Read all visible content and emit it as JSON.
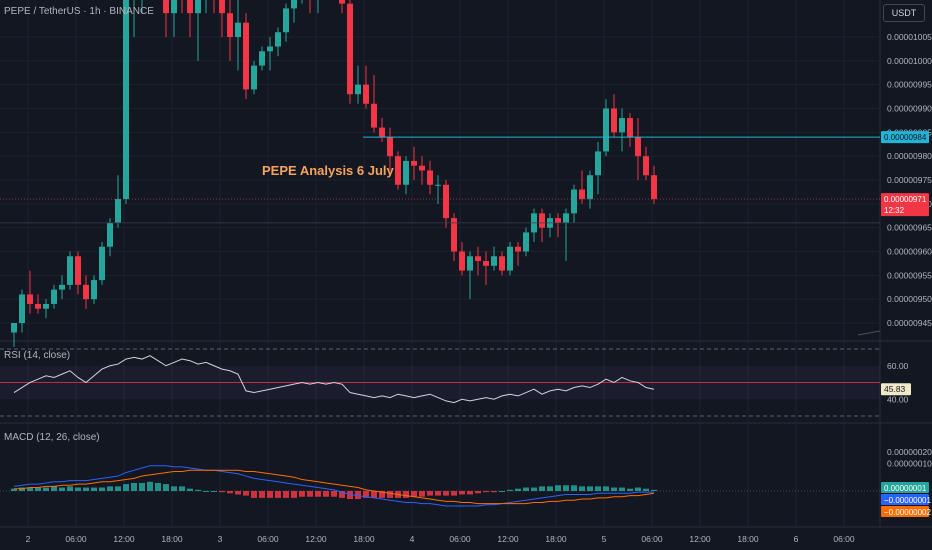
{
  "symbol_line": "PEPE / TetherUS · 1h · BINANCE",
  "annotation": "PEPE Analysis 6 July",
  "currency_button": "USDT",
  "colors": {
    "background": "#131722",
    "up": "#26a69a",
    "down": "#f23645",
    "rsi_line": "#d1d4dc",
    "rsi_mid": "#f23645",
    "macd_line": "#2962ff",
    "signal_line": "#ff6d00",
    "hline": "#22b4d6"
  },
  "price_panel": {
    "y_ticks": [
      "0.00000945",
      "0.00000950",
      "0.00000955",
      "0.00000960",
      "0.00000965",
      "0.00000970",
      "0.00000975",
      "0.00000980",
      "0.00000985",
      "0.00000990",
      "0.00000995",
      "0.00001000",
      "0.00001005"
    ],
    "horizontal_line_value": "0.00000984",
    "last_price": "0.00000971",
    "countdown": "12:32"
  },
  "rsi_panel": {
    "title": "RSI (14, close)",
    "levels": [
      "60.00",
      "40.00"
    ],
    "current": "45.83"
  },
  "macd_panel": {
    "title": "MACD (12, 26, close)",
    "y_ticks": [
      "0.00000020",
      "0.00000010"
    ],
    "histogram_value": "0.00000001",
    "macd_value": "−0.00000001",
    "signal_value": "−0.00000002"
  },
  "x_ticks": [
    "2",
    "06:00",
    "12:00",
    "18:00",
    "3",
    "06:00",
    "12:00",
    "18:00",
    "4",
    "06:00",
    "12:00",
    "18:00",
    "5",
    "06:00",
    "12:00",
    "18:00",
    "6",
    "06:00"
  ],
  "chart_data": {
    "type": "candlestick",
    "x_label_spacing": "6h",
    "ohlc": [
      [
        9.43,
        9.45,
        9.4,
        9.45
      ],
      [
        9.45,
        9.52,
        9.43,
        9.51
      ],
      [
        9.51,
        9.56,
        9.47,
        9.49
      ],
      [
        9.49,
        9.51,
        9.47,
        9.48
      ],
      [
        9.48,
        9.5,
        9.46,
        9.49
      ],
      [
        9.49,
        9.53,
        9.48,
        9.52
      ],
      [
        9.52,
        9.55,
        9.5,
        9.53
      ],
      [
        9.53,
        9.6,
        9.52,
        9.59
      ],
      [
        9.59,
        9.6,
        9.51,
        9.53
      ],
      [
        9.53,
        9.55,
        9.48,
        9.5
      ],
      [
        9.5,
        9.55,
        9.49,
        9.54
      ],
      [
        9.54,
        9.62,
        9.53,
        9.61
      ],
      [
        9.61,
        9.67,
        9.59,
        9.66
      ],
      [
        9.66,
        9.76,
        9.65,
        9.71
      ],
      [
        9.71,
        10.2,
        9.7,
        10.15
      ],
      [
        10.15,
        10.35,
        10.05,
        10.2
      ],
      [
        10.2,
        10.4,
        10.1,
        10.25
      ],
      [
        10.25,
        10.45,
        10.15,
        10.3
      ],
      [
        10.3,
        10.4,
        10.15,
        10.2
      ],
      [
        10.2,
        10.3,
        10.05,
        10.1
      ],
      [
        10.1,
        10.25,
        10.05,
        10.2
      ],
      [
        10.2,
        10.3,
        10.1,
        10.15
      ],
      [
        10.15,
        10.25,
        10.05,
        10.1
      ],
      [
        10.1,
        10.2,
        10.0,
        10.15
      ],
      [
        10.15,
        10.25,
        10.1,
        10.2
      ],
      [
        10.2,
        10.3,
        10.1,
        10.15
      ],
      [
        10.15,
        10.25,
        10.05,
        10.1
      ],
      [
        10.1,
        10.2,
        10.0,
        10.05
      ],
      [
        10.05,
        10.15,
        9.98,
        10.08
      ],
      [
        10.08,
        10.1,
        9.92,
        9.94
      ],
      [
        9.94,
        10.0,
        9.93,
        9.99
      ],
      [
        9.99,
        10.03,
        9.98,
        10.02
      ],
      [
        10.02,
        10.05,
        9.98,
        10.03
      ],
      [
        10.03,
        10.07,
        10.01,
        10.06
      ],
      [
        10.06,
        10.12,
        10.04,
        10.11
      ],
      [
        10.11,
        10.15,
        10.08,
        10.15
      ],
      [
        10.15,
        10.2,
        10.12,
        10.18
      ],
      [
        10.18,
        10.2,
        10.1,
        10.15
      ],
      [
        10.15,
        10.2,
        10.1,
        10.17
      ],
      [
        10.17,
        10.22,
        10.13,
        10.16
      ],
      [
        10.16,
        10.25,
        10.14,
        10.22
      ],
      [
        10.22,
        10.26,
        10.1,
        10.12
      ],
      [
        10.12,
        10.14,
        9.91,
        9.93
      ],
      [
        9.93,
        9.99,
        9.91,
        9.95
      ],
      [
        9.95,
        9.99,
        9.9,
        9.91
      ],
      [
        9.91,
        9.97,
        9.85,
        9.86
      ],
      [
        9.86,
        9.88,
        9.83,
        9.84
      ],
      [
        9.84,
        9.86,
        9.77,
        9.8
      ],
      [
        9.8,
        9.81,
        9.73,
        9.74
      ],
      [
        9.74,
        9.8,
        9.72,
        9.79
      ],
      [
        9.79,
        9.82,
        9.75,
        9.78
      ],
      [
        9.78,
        9.8,
        9.74,
        9.77
      ],
      [
        9.77,
        9.79,
        9.72,
        9.74
      ],
      [
        9.74,
        9.76,
        9.7,
        9.74
      ],
      [
        9.74,
        9.75,
        9.65,
        9.67
      ],
      [
        9.67,
        9.68,
        9.58,
        9.6
      ],
      [
        9.6,
        9.62,
        9.55,
        9.56
      ],
      [
        9.56,
        9.6,
        9.5,
        9.59
      ],
      [
        9.59,
        9.61,
        9.55,
        9.58
      ],
      [
        9.58,
        9.6,
        9.53,
        9.57
      ],
      [
        9.57,
        9.61,
        9.56,
        9.59
      ],
      [
        9.59,
        9.6,
        9.55,
        9.56
      ],
      [
        9.56,
        9.62,
        9.55,
        9.61
      ],
      [
        9.61,
        9.62,
        9.57,
        9.6
      ],
      [
        9.6,
        9.65,
        9.59,
        9.64
      ],
      [
        9.64,
        9.69,
        9.62,
        9.68
      ],
      [
        9.68,
        9.69,
        9.62,
        9.65
      ],
      [
        9.65,
        9.68,
        9.63,
        9.67
      ],
      [
        9.67,
        9.68,
        9.63,
        9.66
      ],
      [
        9.66,
        9.69,
        9.58,
        9.68
      ],
      [
        9.68,
        9.74,
        9.66,
        9.73
      ],
      [
        9.73,
        9.77,
        9.7,
        9.71
      ],
      [
        9.71,
        9.77,
        9.69,
        9.76
      ],
      [
        9.76,
        9.83,
        9.72,
        9.81
      ],
      [
        9.81,
        9.92,
        9.8,
        9.9
      ],
      [
        9.9,
        9.93,
        9.84,
        9.85
      ],
      [
        9.85,
        9.9,
        9.81,
        9.88
      ],
      [
        9.88,
        9.89,
        9.82,
        9.84
      ],
      [
        9.84,
        9.88,
        9.75,
        9.8
      ],
      [
        9.8,
        9.82,
        9.75,
        9.76
      ],
      [
        9.76,
        9.78,
        9.7,
        9.71
      ]
    ],
    "rsi": [
      44,
      47,
      50,
      52,
      54,
      53,
      55,
      57,
      53,
      50,
      54,
      58,
      60,
      61,
      64,
      65,
      64,
      66,
      63,
      60,
      62,
      64,
      63,
      61,
      62,
      60,
      58,
      57,
      55,
      45,
      44,
      45,
      46,
      47,
      48,
      49,
      50,
      49,
      50,
      49,
      50,
      49,
      44,
      43,
      42,
      41,
      42,
      41,
      43,
      42,
      41,
      42,
      43,
      41,
      39,
      38,
      40,
      39,
      40,
      41,
      40,
      42,
      43,
      42,
      44,
      46,
      43,
      45,
      46,
      45,
      47,
      48,
      47,
      49,
      52,
      50,
      53,
      51,
      50,
      47,
      46
    ],
    "macd": [
      4,
      5,
      6,
      6,
      7,
      8,
      8,
      9,
      9,
      9,
      10,
      11,
      12,
      13,
      16,
      18,
      20,
      22,
      22,
      22,
      21,
      21,
      20,
      19,
      18,
      18,
      17,
      16,
      15,
      13,
      11,
      10,
      9,
      8,
      7,
      6,
      5,
      4,
      3,
      2,
      1,
      -1,
      -3,
      -4,
      -5,
      -6,
      -7,
      -8,
      -9,
      -10,
      -10,
      -11,
      -11,
      -12,
      -13,
      -13,
      -13,
      -13,
      -13,
      -12,
      -12,
      -11,
      -10,
      -9,
      -8,
      -7,
      -6,
      -5,
      -4,
      -3,
      -3,
      -3,
      -3,
      -2,
      -2,
      -2,
      -2,
      -2,
      -1,
      -1,
      -1
    ],
    "signal": [
      2,
      2,
      3,
      3,
      4,
      4,
      5,
      5,
      6,
      6,
      7,
      8,
      8,
      9,
      10,
      11,
      13,
      14,
      15,
      16,
      17,
      17,
      18,
      18,
      18,
      18,
      18,
      18,
      18,
      17,
      17,
      16,
      15,
      14,
      13,
      12,
      10,
      9,
      8,
      7,
      6,
      5,
      4,
      3,
      1,
      0,
      -1,
      -2,
      -3,
      -4,
      -5,
      -6,
      -7,
      -8,
      -9,
      -9,
      -10,
      -10,
      -11,
      -11,
      -11,
      -11,
      -11,
      -11,
      -11,
      -10,
      -10,
      -9,
      -9,
      -8,
      -8,
      -7,
      -7,
      -6,
      -6,
      -5,
      -5,
      -4,
      -4,
      -3,
      -2
    ],
    "units_note": "price values ×1e-6; macd/signal ×1e-8"
  }
}
